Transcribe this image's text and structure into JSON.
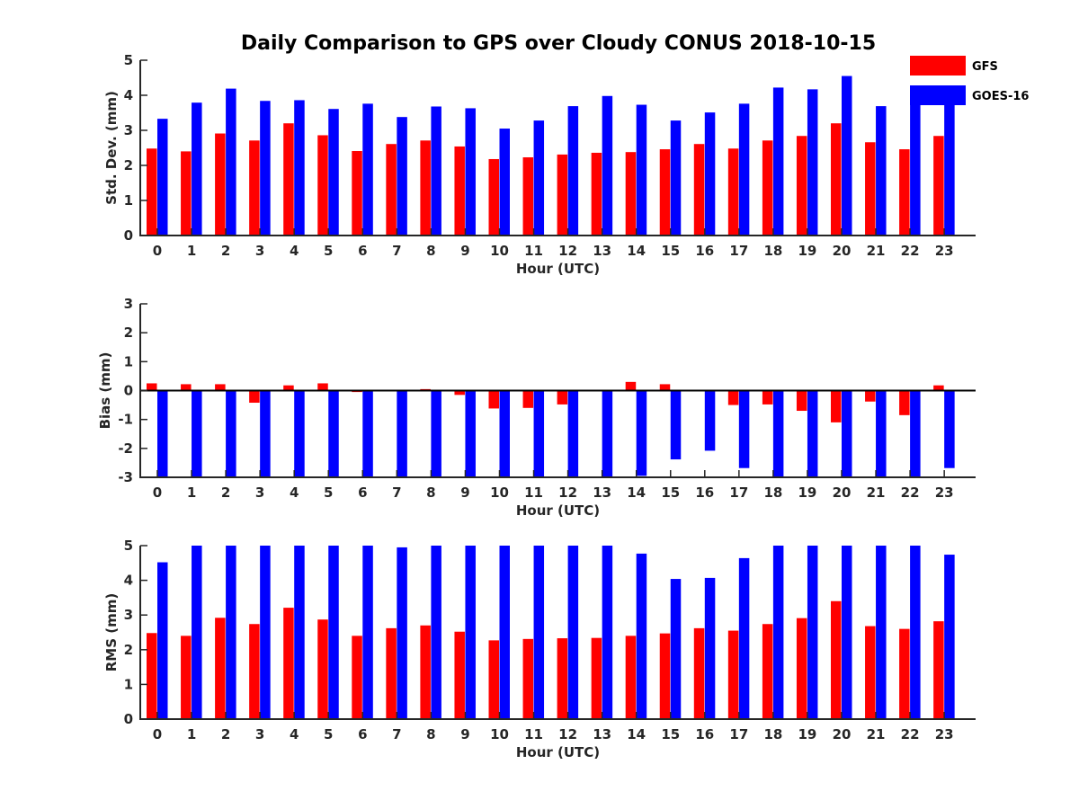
{
  "chart_data": {
    "title": "Daily Comparison to GPS over Cloudy CONUS 2018-10-15",
    "legend": {
      "placement": "top-right",
      "entries": [
        {
          "name": "GFS",
          "color": "#ff0000"
        },
        {
          "name": "GOES-16",
          "color": "#0000ff"
        }
      ]
    },
    "colors": {
      "GFS": "#ff0000",
      "GOES-16": "#0000ff"
    },
    "panels": [
      {
        "type": "bar",
        "xlabel": "Hour (UTC)",
        "ylabel": "Std. Dev. (mm)",
        "ylim": [
          0,
          5
        ],
        "yticks": [
          0,
          1,
          2,
          3,
          4,
          5
        ],
        "categories": [
          "0",
          "1",
          "2",
          "3",
          "4",
          "5",
          "6",
          "7",
          "8",
          "9",
          "10",
          "11",
          "12",
          "13",
          "14",
          "15",
          "16",
          "17",
          "18",
          "19",
          "20",
          "21",
          "22",
          "23"
        ],
        "series": [
          {
            "name": "GFS",
            "values": [
              2.48,
              2.4,
              2.91,
              2.71,
              3.2,
              2.86,
              2.41,
              2.61,
              2.71,
              2.54,
              2.18,
              2.23,
              2.31,
              2.36,
              2.38,
              2.46,
              2.61,
              2.48,
              2.71,
              2.84,
              3.2,
              2.66,
              2.46,
              2.84
            ]
          },
          {
            "name": "GOES-16",
            "values": [
              3.33,
              3.79,
              4.19,
              3.84,
              3.86,
              3.61,
              3.76,
              3.38,
              3.68,
              3.63,
              3.05,
              3.28,
              3.69,
              3.98,
              3.73,
              3.28,
              3.51,
              3.76,
              4.22,
              4.17,
              4.55,
              3.69,
              4.0,
              4.0
            ]
          }
        ]
      },
      {
        "type": "bar",
        "xlabel": "Hour (UTC)",
        "ylabel": "Bias (mm)",
        "ylim": [
          -3,
          3
        ],
        "yticks": [
          -3,
          -2,
          -1,
          0,
          1,
          2,
          3
        ],
        "categories": [
          "0",
          "1",
          "2",
          "3",
          "4",
          "5",
          "6",
          "7",
          "8",
          "9",
          "10",
          "11",
          "12",
          "13",
          "14",
          "15",
          "16",
          "17",
          "18",
          "19",
          "20",
          "21",
          "22",
          "23"
        ],
        "series": [
          {
            "name": "GFS",
            "values": [
              0.25,
              0.22,
              0.22,
              -0.42,
              0.18,
              0.25,
              -0.05,
              0.02,
              0.05,
              -0.15,
              -0.62,
              -0.6,
              -0.48,
              -0.02,
              0.3,
              0.22,
              0.0,
              -0.5,
              -0.48,
              -0.7,
              -1.1,
              -0.38,
              -0.85,
              0.18
            ]
          },
          {
            "name": "GOES-16",
            "values": [
              -3.0,
              -3.0,
              -3.0,
              -3.0,
              -3.0,
              -3.0,
              -3.0,
              -3.0,
              -3.0,
              -3.0,
              -3.0,
              -3.0,
              -3.0,
              -3.0,
              -2.95,
              -2.38,
              -2.08,
              -2.68,
              -3.0,
              -3.0,
              -3.0,
              -3.0,
              -3.0,
              -2.68
            ]
          }
        ]
      },
      {
        "type": "bar",
        "xlabel": "Hour (UTC)",
        "ylabel": "RMS (mm)",
        "ylim": [
          0,
          5
        ],
        "yticks": [
          0,
          1,
          2,
          3,
          4,
          5
        ],
        "categories": [
          "0",
          "1",
          "2",
          "3",
          "4",
          "5",
          "6",
          "7",
          "8",
          "9",
          "10",
          "11",
          "12",
          "13",
          "14",
          "15",
          "16",
          "17",
          "18",
          "19",
          "20",
          "21",
          "22",
          "23"
        ],
        "series": [
          {
            "name": "GFS",
            "values": [
              2.48,
              2.4,
              2.92,
              2.74,
              3.21,
              2.87,
              2.4,
              2.62,
              2.7,
              2.52,
              2.27,
              2.31,
              2.33,
              2.34,
              2.4,
              2.47,
              2.62,
              2.55,
              2.74,
              2.91,
              3.4,
              2.68,
              2.6,
              2.82
            ]
          },
          {
            "name": "GOES-16",
            "values": [
              4.52,
              5.0,
              5.0,
              5.0,
              5.0,
              5.0,
              5.0,
              4.95,
              5.0,
              5.0,
              5.0,
              5.0,
              5.0,
              5.0,
              4.77,
              4.04,
              4.07,
              4.64,
              5.0,
              5.0,
              5.0,
              5.0,
              5.0,
              4.74
            ]
          }
        ]
      }
    ]
  }
}
